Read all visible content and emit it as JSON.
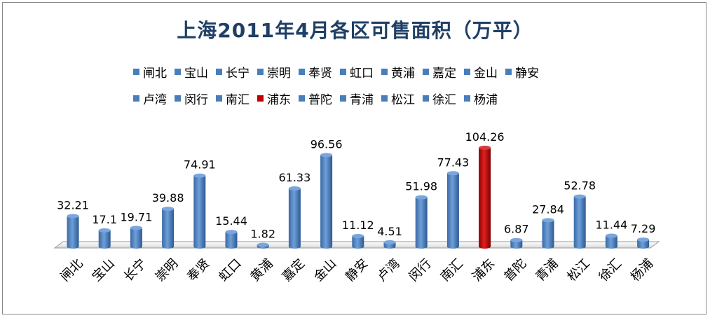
{
  "chart_data": {
    "type": "bar",
    "title": "上海2011年4月各区可售面积（万平）",
    "categories": [
      "闸北",
      "宝山",
      "长宁",
      "崇明",
      "奉贤",
      "虹口",
      "黄浦",
      "嘉定",
      "金山",
      "静安",
      "卢湾",
      "闵行",
      "南汇",
      "浦东",
      "普陀",
      "青浦",
      "松江",
      "徐汇",
      "杨浦"
    ],
    "values": [
      32.21,
      17.1,
      19.71,
      39.88,
      74.91,
      15.44,
      1.82,
      61.33,
      96.56,
      11.12,
      4.51,
      51.98,
      77.43,
      104.26,
      6.87,
      27.84,
      52.78,
      11.44,
      7.29
    ],
    "value_labels": [
      "32.21",
      "17.1",
      "19.71",
      "39.88",
      "74.91",
      "15.44",
      "1.82",
      "61.33",
      "96.56",
      "11.12",
      "4.51",
      "51.98",
      "77.43",
      "104.26",
      "6.87",
      "27.84",
      "52.78",
      "11.44",
      "7.29"
    ],
    "highlight_index": 13,
    "colors": {
      "default": "#4a7ebb",
      "highlight": "#c00000",
      "title": "#1f3f66"
    },
    "legend": {
      "placement": "top",
      "row1": [
        "闸北",
        "宝山",
        "长宁",
        "崇明",
        "奉贤",
        "虹口",
        "黄浦",
        "嘉定",
        "金山",
        "静安"
      ],
      "row2": [
        "卢湾",
        "闵行",
        "南汇",
        "浦东",
        "普陀",
        "青浦",
        "松江",
        "徐汇",
        "杨浦"
      ]
    },
    "grid": false,
    "style": "3d-cylinder"
  }
}
